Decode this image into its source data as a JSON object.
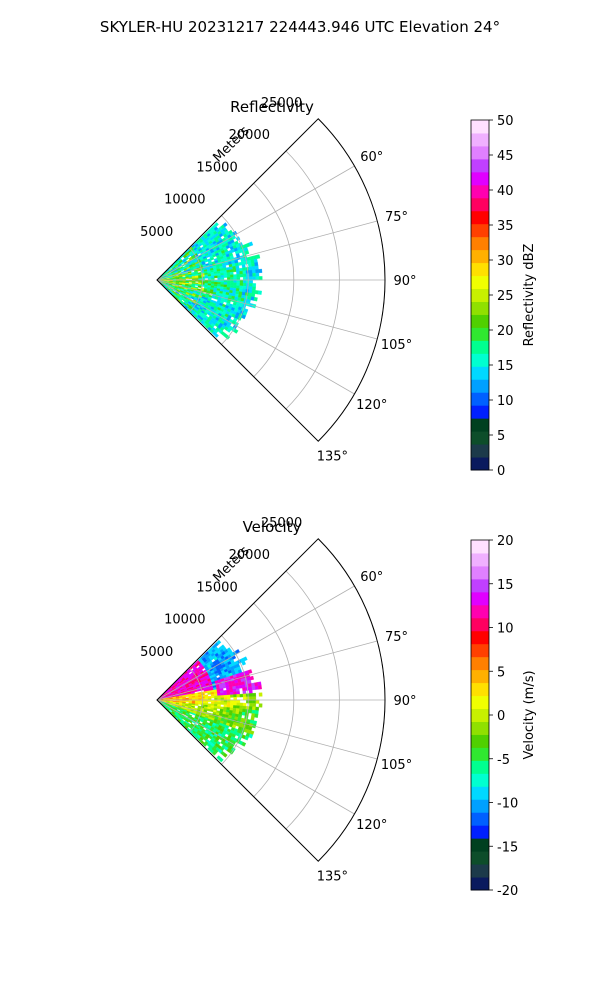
{
  "figure": {
    "title": "SKYLER-HU  20231217  224443.946 UTC Elevation 24°"
  },
  "chart_data": [
    {
      "type": "heatmap",
      "title": "Reflectivity",
      "range_label": "Meters",
      "range_ticks": [
        5000,
        10000,
        15000,
        20000,
        25000
      ],
      "range_tick_labels": [
        "5000",
        "10000",
        "15000",
        "20000",
        "25000"
      ],
      "azimuth_range_deg": [
        45,
        135
      ],
      "azimuth_ticks": [
        60,
        75,
        90,
        105,
        120,
        135
      ],
      "azimuth_tick_labels": [
        "60°",
        "75°",
        "90°",
        "105°",
        "120°",
        "135°"
      ],
      "max_range": 25000,
      "grid": true,
      "colorbar": {
        "label": "Reflectivity dBZ",
        "min": 0,
        "max": 50,
        "ticks": [
          0,
          5,
          10,
          15,
          20,
          25,
          30,
          35,
          40,
          45,
          50
        ],
        "tick_labels": [
          "0",
          "5",
          "10",
          "15",
          "20",
          "25",
          "30",
          "35",
          "40",
          "45",
          "50"
        ],
        "colors": [
          "#0a1a5e",
          "#1c3a4a",
          "#0d4d2a",
          "#004020",
          "#0020ff",
          "#0060ff",
          "#00a0ff",
          "#00d8ff",
          "#00ffd0",
          "#00ff90",
          "#30e830",
          "#50d000",
          "#90e000",
          "#c8f000",
          "#f0ff00",
          "#ffe000",
          "#ffb000",
          "#ff8000",
          "#ff4000",
          "#ff0000",
          "#ff0060",
          "#ff00b0",
          "#e000ff",
          "#c040ff",
          "#e080ff",
          "#f0b0ff",
          "#ffe0ff"
        ]
      }
    },
    {
      "type": "heatmap",
      "title": "Velocity",
      "range_label": "Meters",
      "range_ticks": [
        5000,
        10000,
        15000,
        20000,
        25000
      ],
      "range_tick_labels": [
        "5000",
        "10000",
        "15000",
        "20000",
        "25000"
      ],
      "azimuth_range_deg": [
        45,
        135
      ],
      "azimuth_ticks": [
        60,
        75,
        90,
        105,
        120,
        135
      ],
      "azimuth_tick_labels": [
        "60°",
        "75°",
        "90°",
        "105°",
        "120°",
        "135°"
      ],
      "max_range": 25000,
      "grid": true,
      "colorbar": {
        "label": "Velocity (m/s)",
        "min": -20,
        "max": 20,
        "ticks": [
          -20,
          -15,
          -10,
          -5,
          0,
          5,
          10,
          15,
          20
        ],
        "tick_labels": [
          "-20",
          "-15",
          "-10",
          "-5",
          "0",
          "5",
          "10",
          "15",
          "20"
        ],
        "colors": [
          "#0a1a5e",
          "#1c3a4a",
          "#0d4d2a",
          "#004020",
          "#0020ff",
          "#0060ff",
          "#00a0ff",
          "#00d8ff",
          "#00ffd0",
          "#00ff90",
          "#30e830",
          "#50d000",
          "#90e000",
          "#c8f000",
          "#f0ff00",
          "#ffe000",
          "#ffb000",
          "#ff8000",
          "#ff4000",
          "#ff0000",
          "#ff0060",
          "#ff00b0",
          "#e000ff",
          "#c040ff",
          "#e080ff",
          "#f0b0ff",
          "#ffe0ff"
        ]
      }
    }
  ]
}
